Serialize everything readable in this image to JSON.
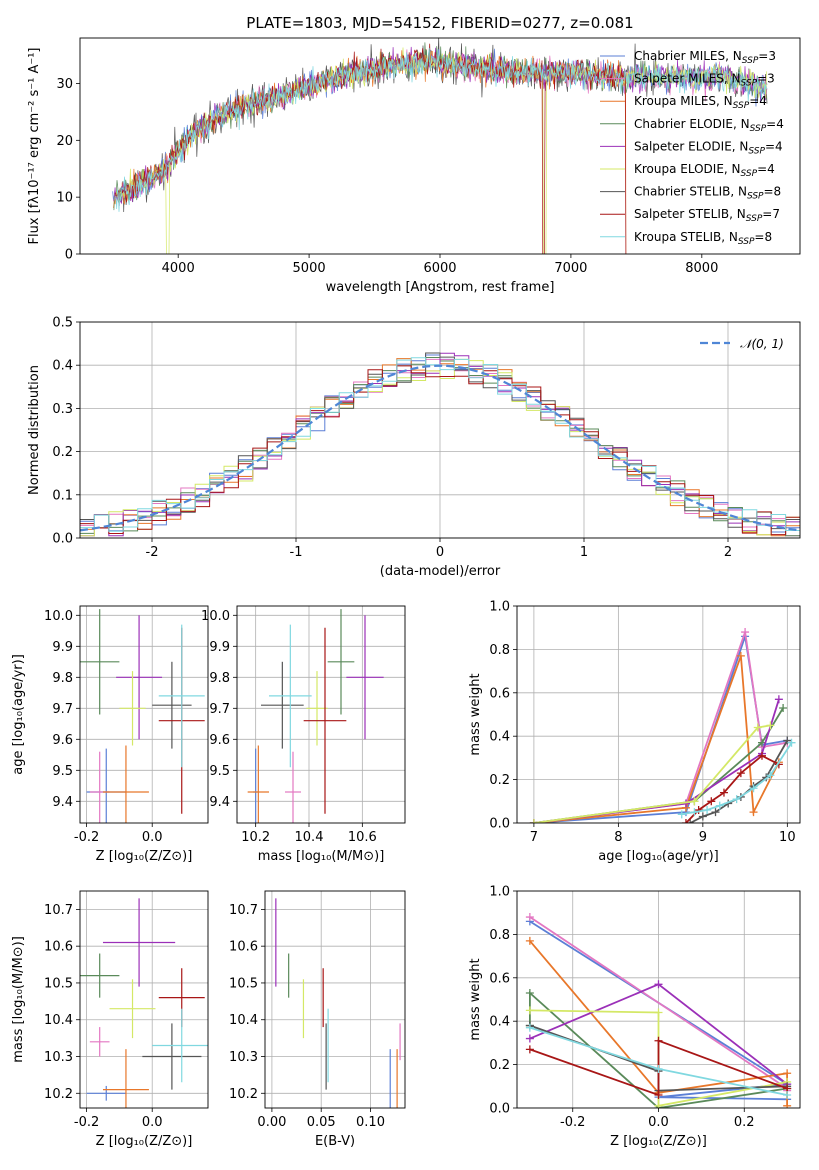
{
  "title": "PLATE=1803, MJD=54152, FIBERID=0277, z=0.081",
  "series": [
    {
      "name": "Chabrier MILES, N",
      "nssp": "3",
      "color": "#5b7fd6"
    },
    {
      "name": "Salpeter MILES, N",
      "nssp": "3",
      "color": "#e377c2"
    },
    {
      "name": "Kroupa MILES, N",
      "nssp": "4",
      "color": "#e8772a"
    },
    {
      "name": "Chabrier ELODIE, N",
      "nssp": "4",
      "color": "#5a8a5a"
    },
    {
      "name": "Salpeter ELODIE, N",
      "nssp": "4",
      "color": "#9b30b8"
    },
    {
      "name": "Kroupa ELODIE, N",
      "nssp": "4",
      "color": "#d4e866"
    },
    {
      "name": "Chabrier STELIB, N",
      "nssp": "8",
      "color": "#555555"
    },
    {
      "name": "Salpeter STELIB, N",
      "nssp": "7",
      "color": "#a81616"
    },
    {
      "name": "Kroupa STELIB, N",
      "nssp": "8",
      "color": "#80d8e0"
    }
  ],
  "nssp_sub": "SSP",
  "chart_data": [
    {
      "type": "line",
      "xlabel": "wavelength [Angstrom, rest frame]",
      "ylabel": "Flux [fλ10⁻¹⁷ erg cm⁻² s⁻¹ A⁻¹]",
      "xlim": [
        3250,
        8750
      ],
      "ylim": [
        0,
        38
      ],
      "xticks": [
        4000,
        5000,
        6000,
        7000,
        8000
      ],
      "yticks": [
        0,
        10,
        20,
        30
      ],
      "spectrum_shape": {
        "x": [
          3500,
          3700,
          3900,
          4100,
          4300,
          4500,
          4800,
          5200,
          5600,
          5900,
          6200,
          6600,
          7000,
          7400,
          7800,
          8200,
          8500
        ],
        "y": [
          10,
          12,
          15,
          21,
          24,
          26,
          28,
          31,
          33,
          34,
          33,
          32,
          32,
          31,
          31,
          31,
          29
        ]
      },
      "legend": "upper right"
    },
    {
      "type": "histogram",
      "xlabel": "(data-model)/error",
      "ylabel": "Normed distribution",
      "xlim": [
        -2.5,
        2.5
      ],
      "ylim": [
        0,
        0.5
      ],
      "xticks": [
        -2,
        -1,
        0,
        1,
        2
      ],
      "yticks": [
        0.0,
        0.1,
        0.2,
        0.3,
        0.4,
        0.5
      ],
      "reference": {
        "label": "𝒩(0, 1)",
        "type": "gaussian",
        "mu": 0,
        "sigma": 1,
        "color": "#4f86d6"
      },
      "legend": "upper right",
      "grid": true
    },
    {
      "type": "errorbar",
      "xlabel": "Z [log₁₀(Z/Z⊙)]",
      "ylabel": "age  [log₁₀(age/yr)]",
      "xlim": [
        -0.22,
        0.17
      ],
      "ylim": [
        9.33,
        10.03
      ],
      "xticks": [
        -0.2,
        0.0
      ],
      "yticks": [
        9.4,
        9.5,
        9.6,
        9.7,
        9.8,
        9.9,
        10.0
      ],
      "points": [
        {
          "x": -0.14,
          "xerr": 0.06,
          "y": 9.43,
          "yerr": 0.14
        },
        {
          "x": -0.16,
          "xerr": 0.03,
          "y": 9.43,
          "yerr": 0.13
        },
        {
          "x": -0.08,
          "xerr": 0.07,
          "y": 9.43,
          "yerr": 0.15
        },
        {
          "x": -0.16,
          "xerr": 0.06,
          "y": 9.85,
          "yerr": 0.17
        },
        {
          "x": -0.04,
          "xerr": 0.07,
          "y": 9.8,
          "yerr": 0.2
        },
        {
          "x": -0.06,
          "xerr": 0.04,
          "y": 9.7,
          "yerr": 0.12
        },
        {
          "x": 0.06,
          "xerr": 0.06,
          "y": 9.71,
          "yerr": 0.14
        },
        {
          "x": 0.09,
          "xerr": 0.07,
          "y": 9.66,
          "yerr": 0.3
        },
        {
          "x": 0.09,
          "xerr": 0.07,
          "y": 9.74,
          "yerr": 0.23
        }
      ],
      "grid": true
    },
    {
      "type": "errorbar",
      "xlabel": "mass [log₁₀(M/M⊙)]",
      "ylabel": "",
      "xlim": [
        10.13,
        10.76
      ],
      "ylim": [
        9.33,
        10.03
      ],
      "xticks": [
        10.2,
        10.4,
        10.6
      ],
      "yticks": [
        9.4,
        9.5,
        9.6,
        9.7,
        9.8,
        9.9,
        10.0
      ],
      "points": [
        {
          "x": 10.2,
          "xerr": 0.01,
          "y": 9.43,
          "yerr": 0.14
        },
        {
          "x": 10.34,
          "xerr": 0.03,
          "y": 9.43,
          "yerr": 0.13
        },
        {
          "x": 10.21,
          "xerr": 0.04,
          "y": 9.43,
          "yerr": 0.15
        },
        {
          "x": 10.52,
          "xerr": 0.05,
          "y": 9.85,
          "yerr": 0.17
        },
        {
          "x": 10.61,
          "xerr": 0.07,
          "y": 9.8,
          "yerr": 0.2
        },
        {
          "x": 10.43,
          "xerr": 0.04,
          "y": 9.7,
          "yerr": 0.12
        },
        {
          "x": 10.3,
          "xerr": 0.08,
          "y": 9.71,
          "yerr": 0.14
        },
        {
          "x": 10.46,
          "xerr": 0.08,
          "y": 9.66,
          "yerr": 0.3
        },
        {
          "x": 10.33,
          "xerr": 0.08,
          "y": 9.74,
          "yerr": 0.23
        }
      ],
      "grid": true
    },
    {
      "type": "line",
      "xlabel": "age  [log₁₀(age/yr)]",
      "ylabel": "mass weight",
      "xlim": [
        6.8,
        10.15
      ],
      "ylim": [
        0,
        1.0
      ],
      "xticks": [
        7,
        8,
        9,
        10
      ],
      "yticks": [
        0.0,
        0.2,
        0.4,
        0.6,
        0.8,
        1.0
      ],
      "series": [
        {
          "x": [
            7.0,
            8.8,
            9.5,
            9.7,
            10.0
          ],
          "y": [
            0.0,
            0.05,
            0.86,
            0.36,
            0.38
          ]
        },
        {
          "x": [
            7.0,
            8.8,
            9.5,
            9.7,
            10.0
          ],
          "y": [
            0.0,
            0.09,
            0.88,
            0.35,
            0.37
          ]
        },
        {
          "x": [
            7.0,
            8.8,
            9.45,
            9.6,
            9.9
          ],
          "y": [
            0.0,
            0.07,
            0.77,
            0.05,
            0.28
          ]
        },
        {
          "x": [
            7.0,
            8.9,
            9.7,
            9.95
          ],
          "y": [
            0.0,
            0.1,
            0.37,
            0.53
          ]
        },
        {
          "x": [
            7.0,
            8.8,
            9.7,
            9.9
          ],
          "y": [
            0.0,
            0.09,
            0.32,
            0.57
          ]
        },
        {
          "x": [
            7.0,
            8.9,
            9.65,
            9.8
          ],
          "y": [
            0.0,
            0.1,
            0.44,
            0.45
          ]
        },
        {
          "x": [
            8.85,
            9.0,
            9.15,
            9.3,
            9.45,
            9.6,
            9.75,
            10.0
          ],
          "y": [
            0.0,
            0.03,
            0.05,
            0.09,
            0.12,
            0.17,
            0.21,
            0.38
          ]
        },
        {
          "x": [
            8.8,
            8.95,
            9.1,
            9.25,
            9.45,
            9.7,
            9.9
          ],
          "y": [
            0.0,
            0.06,
            0.1,
            0.14,
            0.23,
            0.31,
            0.27
          ]
        },
        {
          "x": [
            8.75,
            8.9,
            9.05,
            9.2,
            9.4,
            9.6,
            9.8,
            10.05
          ],
          "y": [
            0.04,
            0.05,
            0.06,
            0.08,
            0.11,
            0.16,
            0.22,
            0.37
          ]
        }
      ],
      "grid": true
    },
    {
      "type": "errorbar",
      "xlabel": "Z [log₁₀(Z/Z⊙)]",
      "ylabel": "mass [log₁₀(M/M⊙)]",
      "xlim": [
        -0.22,
        0.17
      ],
      "ylim": [
        10.16,
        10.75
      ],
      "xticks": [
        -0.2,
        0.0
      ],
      "yticks": [
        10.2,
        10.3,
        10.4,
        10.5,
        10.6,
        10.7
      ],
      "points": [
        {
          "x": -0.14,
          "xerr": 0.06,
          "y": 10.2,
          "yerr": 0.02
        },
        {
          "x": -0.16,
          "xerr": 0.03,
          "y": 10.34,
          "yerr": 0.04
        },
        {
          "x": -0.08,
          "xerr": 0.07,
          "y": 10.21,
          "yerr": 0.11
        },
        {
          "x": -0.16,
          "xerr": 0.06,
          "y": 10.52,
          "yerr": 0.06
        },
        {
          "x": -0.04,
          "xerr": 0.11,
          "y": 10.61,
          "yerr": 0.12
        },
        {
          "x": -0.06,
          "xerr": 0.07,
          "y": 10.43,
          "yerr": 0.08
        },
        {
          "x": 0.06,
          "xerr": 0.09,
          "y": 10.3,
          "yerr": 0.09
        },
        {
          "x": 0.09,
          "xerr": 0.07,
          "y": 10.46,
          "yerr": 0.08
        },
        {
          "x": 0.09,
          "xerr": 0.09,
          "y": 10.33,
          "yerr": 0.1
        }
      ],
      "grid": true
    },
    {
      "type": "errorbar",
      "xlabel": "E(B-V)",
      "ylabel": "",
      "xlim": [
        -0.007,
        0.135
      ],
      "ylim": [
        10.16,
        10.75
      ],
      "xticks": [
        0.0,
        0.05,
        0.1
      ],
      "yticks": [
        10.2,
        10.3,
        10.4,
        10.5,
        10.6,
        10.7
      ],
      "points": [
        {
          "x": 0.12,
          "xerr": 0.0,
          "y": 10.2,
          "yerr": 0.12
        },
        {
          "x": 0.13,
          "xerr": 0.0,
          "y": 10.34,
          "yerr": 0.05
        },
        {
          "x": 0.127,
          "xerr": 0.0,
          "y": 10.21,
          "yerr": 0.11
        },
        {
          "x": 0.017,
          "xerr": 0.0,
          "y": 10.52,
          "yerr": 0.06
        },
        {
          "x": 0.004,
          "xerr": 0.0,
          "y": 10.61,
          "yerr": 0.12
        },
        {
          "x": 0.032,
          "xerr": 0.0,
          "y": 10.43,
          "yerr": 0.08
        },
        {
          "x": 0.055,
          "xerr": 0.0,
          "y": 10.3,
          "yerr": 0.09
        },
        {
          "x": 0.052,
          "xerr": 0.0,
          "y": 10.46,
          "yerr": 0.08
        },
        {
          "x": 0.057,
          "xerr": 0.0,
          "y": 10.33,
          "yerr": 0.1
        }
      ],
      "grid": true
    },
    {
      "type": "line",
      "xlabel": "Z [log₁₀(Z/Z⊙)]",
      "ylabel": "mass weight",
      "xlim": [
        -0.33,
        0.33
      ],
      "ylim": [
        0,
        1.0
      ],
      "xticks": [
        -0.2,
        0.0,
        0.2
      ],
      "yticks": [
        0.0,
        0.2,
        0.4,
        0.6,
        0.8,
        1.0
      ],
      "series": [
        {
          "x": [
            -0.3,
            0.3,
            0.0,
            0.3
          ],
          "y": [
            0.86,
            0.11,
            0.05,
            0.04
          ]
        },
        {
          "x": [
            -0.3,
            0.3,
            0.3
          ],
          "y": [
            0.88,
            0.09,
            0.08
          ]
        },
        {
          "x": [
            -0.3,
            0.0,
            0.3,
            0.3
          ],
          "y": [
            0.77,
            0.07,
            0.16,
            0.01
          ]
        },
        {
          "x": [
            -0.3,
            -0.3,
            0.0,
            0.3
          ],
          "y": [
            0.38,
            0.53,
            0.0,
            0.09
          ]
        },
        {
          "x": [
            -0.3,
            0.0,
            0.3
          ],
          "y": [
            0.32,
            0.57,
            0.11
          ]
        },
        {
          "x": [
            -0.3,
            0.0,
            0.0,
            0.3
          ],
          "y": [
            0.45,
            0.44,
            0.01,
            0.12
          ]
        },
        {
          "x": [
            -0.3,
            0.0,
            0.0,
            0.3
          ],
          "y": [
            0.38,
            0.17,
            0.08,
            0.1
          ]
        },
        {
          "x": [
            -0.3,
            0.0,
            0.0,
            0.3
          ],
          "y": [
            0.27,
            0.06,
            0.31,
            0.09
          ]
        },
        {
          "x": [
            -0.3,
            0.0,
            0.3
          ],
          "y": [
            0.37,
            0.18,
            0.06
          ]
        }
      ],
      "grid": true
    }
  ]
}
